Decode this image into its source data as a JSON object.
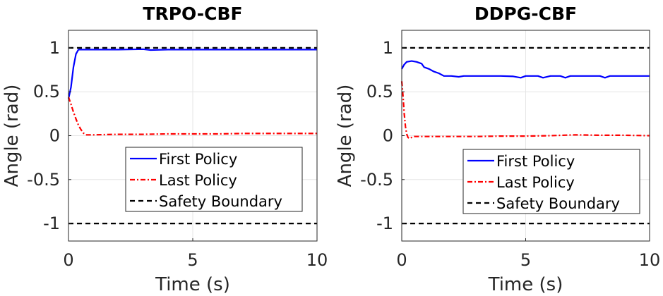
{
  "chart_data": [
    {
      "type": "line",
      "title": "TRPO-CBF",
      "xlabel": "Time (s)",
      "ylabel": "Angle (rad)",
      "xlim": [
        0,
        10
      ],
      "ylim": [
        -1.2,
        1.2
      ],
      "xticks": [
        0,
        5,
        10
      ],
      "xtick_labels": [
        "0",
        "5",
        "10"
      ],
      "yticks": [
        1,
        0.5,
        0,
        -0.5,
        -1
      ],
      "ytick_labels": [
        "1",
        "0.5",
        "0",
        "-0.5",
        "-1"
      ],
      "grid": true,
      "legend_position": "bottom-right",
      "series": [
        {
          "name": "First Policy",
          "color": "#0000ff",
          "style": "solid",
          "x": [
            0,
            0.1,
            0.2,
            0.3,
            0.4,
            0.5,
            0.7,
            1,
            2,
            3,
            3.3,
            4,
            5,
            6,
            7,
            8,
            9,
            10
          ],
          "y": [
            0.42,
            0.55,
            0.78,
            0.93,
            0.98,
            0.98,
            0.98,
            0.98,
            0.98,
            0.985,
            0.975,
            0.98,
            0.98,
            0.98,
            0.98,
            0.98,
            0.98,
            0.98
          ]
        },
        {
          "name": "Last Policy",
          "color": "#ff0000",
          "style": "dashdot",
          "x": [
            0,
            0.1,
            0.2,
            0.3,
            0.4,
            0.5,
            0.6,
            0.7,
            0.8,
            1,
            2,
            3,
            4,
            5,
            6,
            7,
            8,
            9,
            10
          ],
          "y": [
            0.44,
            0.36,
            0.27,
            0.19,
            0.12,
            0.07,
            0.03,
            0.01,
            0.01,
            0.01,
            0.015,
            0.015,
            0.02,
            0.02,
            0.02,
            0.025,
            0.025,
            0.025,
            0.025
          ]
        },
        {
          "name": "Safety Boundary",
          "color": "#000000",
          "style": "dashed",
          "x": [
            0,
            10
          ],
          "y": [
            1,
            1
          ]
        },
        {
          "name": "",
          "color": "#000000",
          "style": "dashed",
          "x": [
            0,
            10
          ],
          "y": [
            -1,
            -1
          ]
        }
      ]
    },
    {
      "type": "line",
      "title": "DDPG-CBF",
      "xlabel": "Time (s)",
      "ylabel": "Angle (rad)",
      "xlim": [
        0,
        10
      ],
      "ylim": [
        -1.2,
        1.2
      ],
      "xticks": [
        0,
        5,
        10
      ],
      "xtick_labels": [
        "0",
        "5",
        "10"
      ],
      "yticks": [
        1,
        0.5,
        0,
        -0.5,
        -1
      ],
      "ytick_labels": [
        "1",
        "0.5",
        "0",
        "-0.5",
        "-1"
      ],
      "grid": true,
      "legend_position": "bottom-right",
      "series": [
        {
          "name": "First Policy",
          "color": "#0000ff",
          "style": "solid",
          "x": [
            0,
            0.1,
            0.2,
            0.4,
            0.6,
            0.8,
            0.9,
            1.1,
            1.3,
            1.5,
            1.7,
            2,
            2.3,
            2.5,
            3,
            3.5,
            4,
            4.5,
            4.8,
            5,
            5.5,
            5.7,
            6,
            6.4,
            6.6,
            6.8,
            7,
            7.5,
            8,
            8.2,
            8.4,
            9,
            9.5,
            10
          ],
          "y": [
            0.76,
            0.81,
            0.84,
            0.85,
            0.84,
            0.82,
            0.78,
            0.76,
            0.73,
            0.71,
            0.68,
            0.68,
            0.67,
            0.68,
            0.68,
            0.68,
            0.68,
            0.675,
            0.66,
            0.68,
            0.68,
            0.66,
            0.68,
            0.68,
            0.66,
            0.68,
            0.68,
            0.68,
            0.68,
            0.66,
            0.68,
            0.68,
            0.68,
            0.68
          ]
        },
        {
          "name": "Last Policy",
          "color": "#ff0000",
          "style": "dashdot",
          "x": [
            0,
            0.05,
            0.1,
            0.15,
            0.2,
            0.25,
            0.3,
            0.35,
            0.4,
            0.5,
            0.7,
            1,
            2,
            3,
            4,
            5,
            6,
            7,
            8,
            9,
            10
          ],
          "y": [
            0.62,
            0.45,
            0.25,
            0.1,
            0.02,
            -0.02,
            -0.03,
            -0.03,
            -0.02,
            -0.01,
            -0.01,
            -0.01,
            -0.01,
            -0.01,
            -0.005,
            -0.005,
            0,
            0.01,
            0.005,
            0.005,
            0
          ]
        },
        {
          "name": "Safety Boundary",
          "color": "#000000",
          "style": "dashed",
          "x": [
            0,
            10
          ],
          "y": [
            1,
            1
          ]
        },
        {
          "name": "",
          "color": "#000000",
          "style": "dashed",
          "x": [
            0,
            10
          ],
          "y": [
            -1,
            -1
          ]
        }
      ]
    }
  ]
}
